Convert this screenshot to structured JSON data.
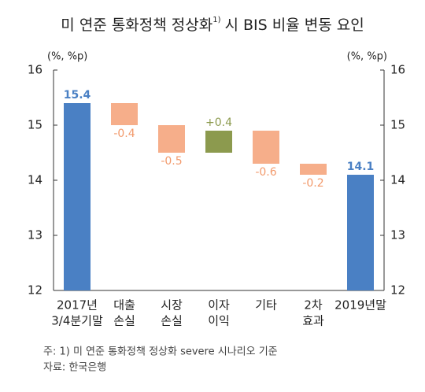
{
  "chart_data": {
    "type": "waterfall",
    "title": "미 연준 통화정책 정상화",
    "title_note": "1)",
    "title_suffix": "시 BIS 비율 변동 요인",
    "y_unit": "(%, %p)",
    "y2_unit": "(%, %p)",
    "categories": [
      [
        "2017년",
        "3/4분기말"
      ],
      [
        "대출",
        "손실"
      ],
      [
        "시장",
        "손실"
      ],
      [
        "이자",
        "이익"
      ],
      [
        "기타"
      ],
      [
        "2차",
        "효과"
      ],
      [
        "2019년말"
      ]
    ],
    "measure": [
      "absolute",
      "relative",
      "relative",
      "relative",
      "relative",
      "relative",
      "absolute"
    ],
    "values": [
      15.4,
      -0.4,
      -0.5,
      0.4,
      -0.6,
      -0.2,
      14.1
    ],
    "value_labels": [
      "15.4",
      "-0.4",
      "-0.5",
      "+0.4",
      "-0.6",
      "-0.2",
      "14.1"
    ],
    "colors": {
      "total": "#4a80c4",
      "decrease": "#f6ae8a",
      "increase": "#8c9a4e"
    },
    "ylim": [
      12,
      16
    ],
    "yticks": [
      12,
      13,
      14,
      15,
      16
    ],
    "y2lim": [
      12,
      16
    ],
    "y2ticks": [
      12,
      13,
      14,
      15,
      16
    ],
    "notes": [
      "주: 1) 미 연준 통화정책 정상화 severe 시나리오 기준",
      "자료: 한국은행"
    ]
  }
}
